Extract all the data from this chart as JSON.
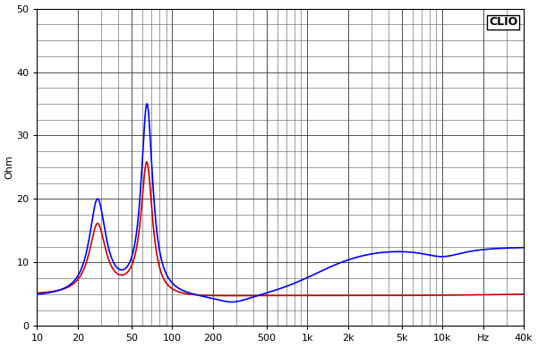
{
  "title": "CLIO",
  "ylabel": "Ohm",
  "xmin": 10,
  "xmax": 40000,
  "ymin": 0,
  "ymax": 50,
  "background_color": "#ffffff",
  "grid_major_color": "#333333",
  "grid_minor_color": "#555555",
  "line_blue_color": "#0000ff",
  "line_red_color": "#cc0000",
  "line_width": 1.2,
  "xtick_positions": [
    10,
    20,
    50,
    100,
    200,
    500,
    1000,
    2000,
    5000,
    10000,
    20000,
    40000
  ],
  "xtick_labels": [
    "10",
    "20",
    "50",
    "100",
    "200",
    "500",
    "1k",
    "2k",
    "5k",
    "10k",
    "Hz",
    "40k"
  ],
  "ytick_positions": [
    0,
    10,
    20,
    30,
    40,
    50
  ],
  "ytick_labels": [
    "0",
    "10",
    "20",
    "30",
    "40",
    "50"
  ]
}
